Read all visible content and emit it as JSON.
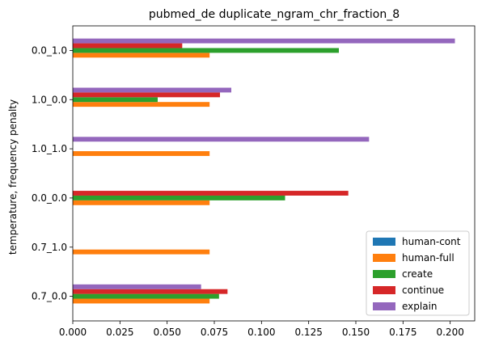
{
  "chart_data": {
    "type": "bar",
    "orientation": "horizontal",
    "title": "pubmed_de duplicate_ngram_chr_fraction_8",
    "xlabel": "",
    "ylabel": "temperature, frequency penalty",
    "categories": [
      "0.0_1.0",
      "1.0_0.0",
      "1.0_1.0",
      "0.0_0.0",
      "0.7_1.0",
      "0.7_0.0"
    ],
    "xlim": [
      0,
      0.213
    ],
    "xticks": [
      "0.000",
      "0.025",
      "0.050",
      "0.075",
      "0.100",
      "0.125",
      "0.150",
      "0.175",
      "0.200"
    ],
    "legend_position": "lower right",
    "series": [
      {
        "name": "human-cont",
        "color": "#1f77b4",
        "values": [
          0,
          0,
          0,
          0,
          0,
          0
        ]
      },
      {
        "name": "human-full",
        "color": "#ff7f0e",
        "values": [
          0.0725,
          0.0725,
          0.0725,
          0.0725,
          0.0725,
          0.0725
        ]
      },
      {
        "name": "create",
        "color": "#2ca02c",
        "values": [
          0.141,
          0.045,
          0,
          0.1125,
          0,
          0.0775
        ]
      },
      {
        "name": "continue",
        "color": "#d62728",
        "values": [
          0.058,
          0.078,
          0,
          0.146,
          0,
          0.082
        ]
      },
      {
        "name": "explain",
        "color": "#9467bd",
        "values": [
          0.2025,
          0.084,
          0.157,
          0,
          0,
          0.068
        ]
      }
    ]
  }
}
